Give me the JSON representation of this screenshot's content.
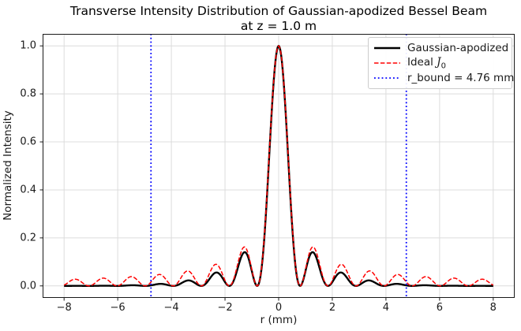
{
  "title": {
    "line1": "Transverse Intensity Distribution of Gaussian-apodized Bessel Beam",
    "line2": "at z = 1.0 m"
  },
  "axes": {
    "xlabel": "r (mm)",
    "ylabel": "Normalized Intensity",
    "xlim": [
      -8.8,
      8.8
    ],
    "ylim": [
      -0.05,
      1.05
    ],
    "x_ticks": [
      {
        "v": -8,
        "label": "−8"
      },
      {
        "v": -6,
        "label": "−6"
      },
      {
        "v": -4,
        "label": "−4"
      },
      {
        "v": -2,
        "label": "−2"
      },
      {
        "v": 0,
        "label": "0"
      },
      {
        "v": 2,
        "label": "2"
      },
      {
        "v": 4,
        "label": "4"
      },
      {
        "v": 6,
        "label": "6"
      },
      {
        "v": 8,
        "label": "8"
      }
    ],
    "y_ticks": [
      {
        "v": 0.0,
        "label": "0.0"
      },
      {
        "v": 0.2,
        "label": "0.2"
      },
      {
        "v": 0.4,
        "label": "0.4"
      },
      {
        "v": 0.6,
        "label": "0.6"
      },
      {
        "v": 0.8,
        "label": "0.8"
      },
      {
        "v": 1.0,
        "label": "1.0"
      }
    ],
    "grid": true,
    "grid_color": "#dcdcdc",
    "spine_color": "#1a1a1a"
  },
  "chart_data": {
    "type": "line",
    "title": "Transverse Intensity Distribution of Gaussian-apodized Bessel Beam at z = 1.0 m",
    "xlabel": "r (mm)",
    "ylabel": "Normalized Intensity",
    "xlim": [
      -8.8,
      8.8
    ],
    "ylim": [
      -0.05,
      1.05
    ],
    "grid": true,
    "legend_position": "upper right",
    "x_range_mm": [
      -8,
      8
    ],
    "sample_step_mm": 0.02,
    "series": [
      {
        "name": "Gaussian-apodized",
        "color": "#000000",
        "line_style": "solid",
        "line_width": 2.4,
        "model": {
          "kind": "bessel_j0_squared_gaussian_apodized",
          "k_r_rad_per_mm": 3.0,
          "gaussian_w_mm": 4.76
        },
        "peak_r_mm": 0,
        "peak_value": 1.0,
        "sidelobe_peaks_r_mm": [
          1.28,
          2.34,
          3.39,
          4.44,
          5.49,
          6.54,
          7.59
        ],
        "sidelobe_peak_values": [
          0.141,
          0.056,
          0.023,
          0.008,
          0.003,
          0.001,
          0.0
        ]
      },
      {
        "name": "Ideal J0",
        "color": "#ff0000",
        "line_style": "dashed",
        "line_width": 1.5,
        "model": {
          "kind": "bessel_j0_squared",
          "k_r_rad_per_mm": 3.0
        },
        "peak_r_mm": 0,
        "peak_value": 1.0,
        "sidelobe_peaks_r_mm": [
          1.28,
          2.34,
          3.39,
          4.44,
          5.49,
          6.54,
          7.59
        ],
        "sidelobe_peak_values": [
          0.162,
          0.09,
          0.062,
          0.048,
          0.039,
          0.032,
          0.028
        ]
      }
    ],
    "vlines": {
      "name": "r_bound",
      "label": "r_bound = 4.76 mm",
      "x_mm": [
        -4.76,
        4.76
      ],
      "color": "#0000ff",
      "line_style": "dotted",
      "line_width": 1.8
    }
  },
  "legend": {
    "border_color": "#cccccc",
    "items": [
      {
        "sample": {
          "color": "#000000",
          "style": "solid",
          "width": 2.6
        },
        "label_parts": [
          {
            "t": "Gaussian-apodized"
          }
        ]
      },
      {
        "sample": {
          "color": "#ff0000",
          "style": "dashed",
          "width": 1.5
        },
        "label_parts": [
          {
            "t": "Ideal "
          },
          {
            "t": "J",
            "style": "italic"
          },
          {
            "t": "0",
            "style": "sub"
          }
        ]
      },
      {
        "sample": {
          "color": "#0000ff",
          "style": "dotted",
          "width": 1.8
        },
        "label_parts": [
          {
            "t": "r_bound = 4.76 mm"
          }
        ]
      }
    ]
  }
}
